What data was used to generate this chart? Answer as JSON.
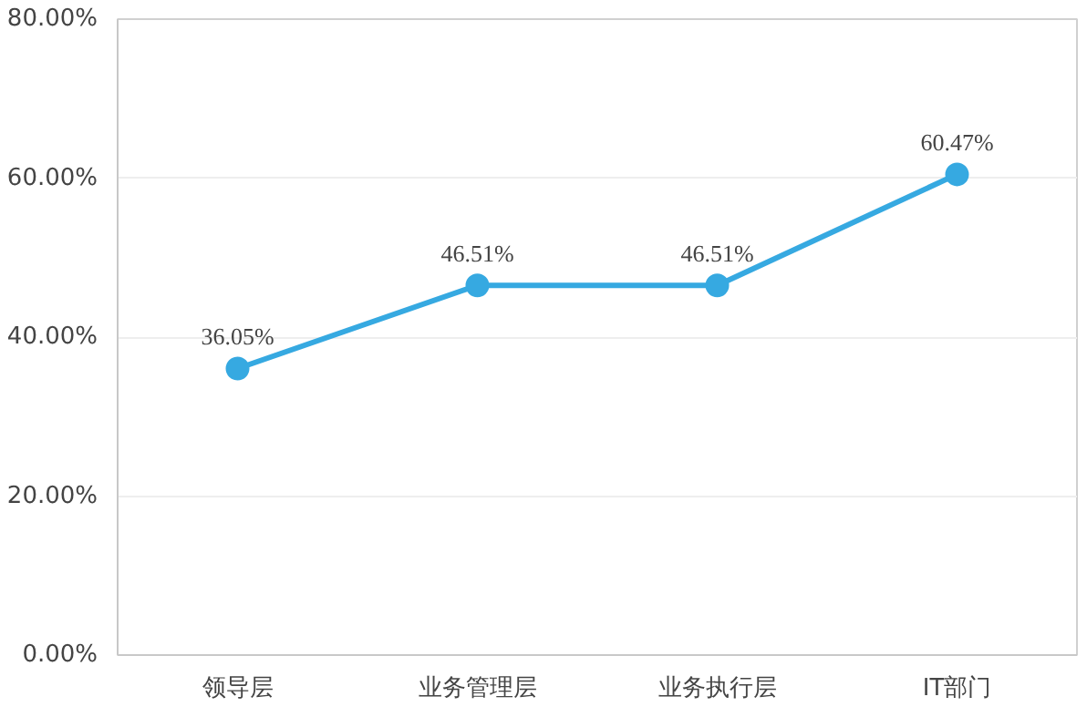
{
  "chart_data": {
    "type": "line",
    "categories": [
      "领导层",
      "业务管理层",
      "业务执行层",
      "IT部门"
    ],
    "values": [
      36.05,
      46.51,
      46.51,
      60.47
    ],
    "value_labels": [
      "36.05%",
      "46.51%",
      "46.51%",
      "60.47%"
    ],
    "color": "#36a9e1",
    "marker": "circle",
    "line_style": "solid",
    "grid": "y",
    "ylim": [
      0,
      80
    ],
    "yticks": [
      {
        "value": 0,
        "label": "0.00%"
      },
      {
        "value": 20,
        "label": "20.00%"
      },
      {
        "value": 40,
        "label": "40.00%"
      },
      {
        "value": 60,
        "label": "60.00%"
      },
      {
        "value": 80,
        "label": "80.00%"
      }
    ]
  }
}
